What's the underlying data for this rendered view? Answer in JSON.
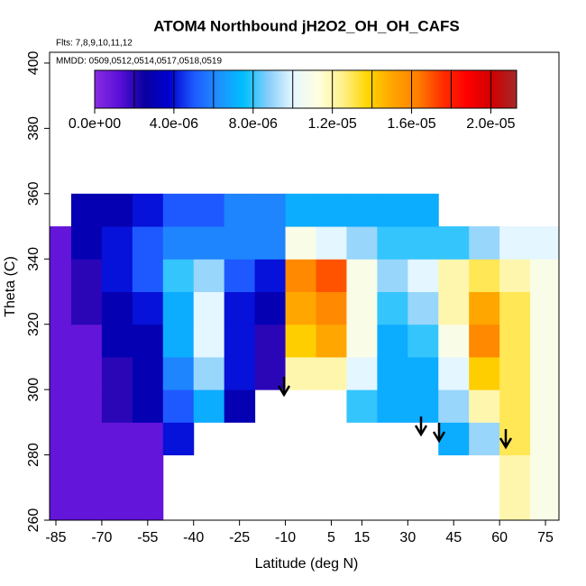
{
  "chart_data": {
    "type": "heatmap",
    "title": "ATOM4 Northbound jH2O2_OH_OH_CAFS",
    "subtitle": "Flts: 7,8,9,10,11,12",
    "annotation": "MMDD: 0509,0512,0514,0517,0518,0519",
    "x_label": "Latitude (deg N)",
    "y_label": "Theta (C)",
    "xlim": [
      -87.06,
      79.4
    ],
    "ylim": [
      260,
      403.3
    ],
    "xticks": [
      -85,
      -70,
      -55,
      -40,
      -25,
      -10,
      5,
      15,
      30,
      45,
      60,
      75
    ],
    "yticks": [
      260,
      280,
      300,
      320,
      340,
      360,
      380,
      400
    ],
    "x_bins": [
      -90,
      -80,
      -70,
      -60,
      -50,
      -40,
      -30,
      -20,
      -10,
      0,
      10,
      20,
      30,
      40,
      50,
      60,
      70,
      80
    ],
    "y_bins": [
      260,
      270,
      280,
      290,
      300,
      310,
      320,
      330,
      340,
      350,
      360
    ],
    "values": [
      [
        1e-06,
        1e-06,
        1e-06,
        1e-06,
        null,
        null,
        null,
        null,
        null,
        null,
        null,
        null,
        null,
        null,
        null,
        1.2e-05,
        1.1e-05
      ],
      [
        1e-06,
        1e-06,
        1e-06,
        1e-06,
        null,
        null,
        null,
        null,
        null,
        null,
        null,
        null,
        null,
        null,
        null,
        1.2e-05,
        1.1e-05
      ],
      [
        1e-06,
        1e-06,
        1e-06,
        1e-06,
        4e-06,
        null,
        null,
        null,
        null,
        null,
        null,
        null,
        null,
        7e-06,
        9e-06,
        1.3e-05,
        1.1e-05
      ],
      [
        1e-06,
        1e-06,
        2e-06,
        3e-06,
        5e-06,
        7e-06,
        3e-06,
        null,
        null,
        null,
        8e-06,
        7e-06,
        7e-06,
        9e-06,
        1.2e-05,
        1.3e-05,
        1.1e-05
      ],
      [
        1e-06,
        1e-06,
        2e-06,
        3e-06,
        6e-06,
        9e-06,
        4e-06,
        2e-06,
        1.2e-05,
        1.2e-05,
        1e-05,
        7e-06,
        7e-06,
        1e-05,
        1.4e-05,
        1.3e-05,
        1.1e-05
      ],
      [
        1e-06,
        1e-06,
        3e-06,
        3e-06,
        7e-06,
        1e-05,
        4e-06,
        2e-06,
        1.4e-05,
        1.5e-05,
        1.1e-05,
        7e-06,
        8e-06,
        1.1e-05,
        1.6e-05,
        1.3e-05,
        1.1e-05
      ],
      [
        1e-06,
        2e-06,
        3e-06,
        4e-06,
        7e-06,
        1e-05,
        4e-06,
        3e-06,
        1.5e-05,
        1.6e-05,
        1.1e-05,
        8e-06,
        9e-06,
        1.2e-05,
        1.5e-05,
        1.3e-05,
        1.1e-05
      ],
      [
        1e-06,
        2e-06,
        4e-06,
        5e-06,
        8e-06,
        9e-06,
        5e-06,
        4e-06,
        1.6e-05,
        1.7e-05,
        1.1e-05,
        9e-06,
        1e-05,
        1.2e-05,
        1.3e-05,
        1.2e-05,
        1.1e-05
      ],
      [
        1e-06,
        3e-06,
        4e-06,
        5e-06,
        6e-06,
        6e-06,
        6e-06,
        6e-06,
        1.1e-05,
        1e-05,
        9e-06,
        8e-06,
        8e-06,
        8e-06,
        9e-06,
        1e-05,
        1e-05
      ],
      [
        null,
        3e-06,
        3e-06,
        4e-06,
        5e-06,
        5e-06,
        6e-06,
        6e-06,
        7e-06,
        7e-06,
        7e-06,
        7e-06,
        7e-06,
        null,
        null,
        null,
        null
      ]
    ],
    "clim": [
      0,
      2.13e-05
    ],
    "colorscale": [
      "#8a2be2",
      "#5a10d8",
      "#0a00a0",
      "#0000d0",
      "#1e5aff",
      "#1e90ff",
      "#00bfff",
      "#87cefa",
      "#e6f7ff",
      "#ffffe0",
      "#fff08a",
      "#ffd700",
      "#ffa500",
      "#ff8000",
      "#ff3000",
      "#ff0000",
      "#d00000",
      "#a52a2a"
    ],
    "colorbar_breaks": [
      2e-06,
      4e-06,
      6e-06,
      8e-06,
      1e-05,
      1.2e-05,
      1.4e-05,
      1.6e-05,
      1.8e-05,
      2e-05
    ],
    "colorbar_ticks": [
      {
        "value": 0,
        "label": "0.0e+00"
      },
      {
        "value": 4e-06,
        "label": "4.0e-06"
      },
      {
        "value": 8e-06,
        "label": "8.0e-06"
      },
      {
        "value": 1.2e-05,
        "label": "1.2e-05"
      },
      {
        "value": 1.6e-05,
        "label": "1.6e-05"
      },
      {
        "value": 2e-05,
        "label": "2.0e-05"
      }
    ]
  }
}
